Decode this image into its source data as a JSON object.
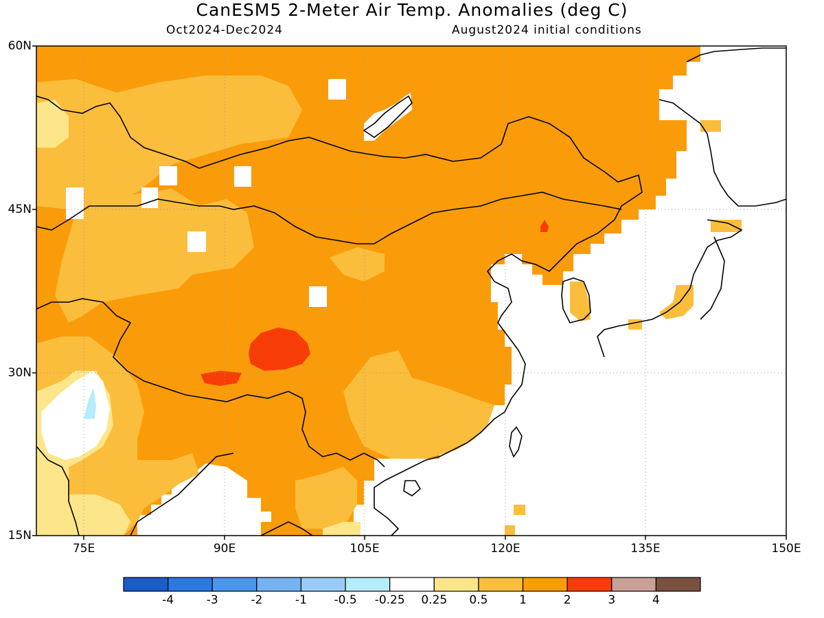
{
  "title": "CanESM5 2-Meter Air Temp. Anomalies (deg C)",
  "subtitle_left": "Oct2024-Dec2024",
  "subtitle_right": "August2024 initial conditions",
  "lat_labels": [
    "60N",
    "45N",
    "30N",
    "15N"
  ],
  "lon_labels": [
    "75E",
    "90E",
    "105E",
    "120E",
    "135E",
    "150E"
  ],
  "map": {
    "lon_range": [
      70,
      150
    ],
    "lat_range": [
      15,
      60
    ],
    "land_default_class": "1 to 2",
    "highlight_regions": [
      {
        "name": "Tibetan Plateau hotspot",
        "class": "2 to 3"
      },
      {
        "name": "Northeast China hotspot",
        "class": "2 to 3"
      },
      {
        "name": "Central India minimum",
        "class": "-0.5 to -0.25"
      }
    ]
  },
  "colorbar": {
    "tick_labels": [
      "-4",
      "-3",
      "-2",
      "-1",
      "-0.5",
      "-0.25",
      "0.25",
      "0.5",
      "1",
      "2",
      "3",
      "4"
    ],
    "colors": [
      "#1a5cc8",
      "#2a78e0",
      "#4a96ec",
      "#74b2f2",
      "#98ccf6",
      "#b4ecfa",
      "#ffffff",
      "#fde68a",
      "#fbbd3c",
      "#fa9c0a",
      "#f83c08",
      "#c8a098",
      "#7a5040"
    ]
  }
}
